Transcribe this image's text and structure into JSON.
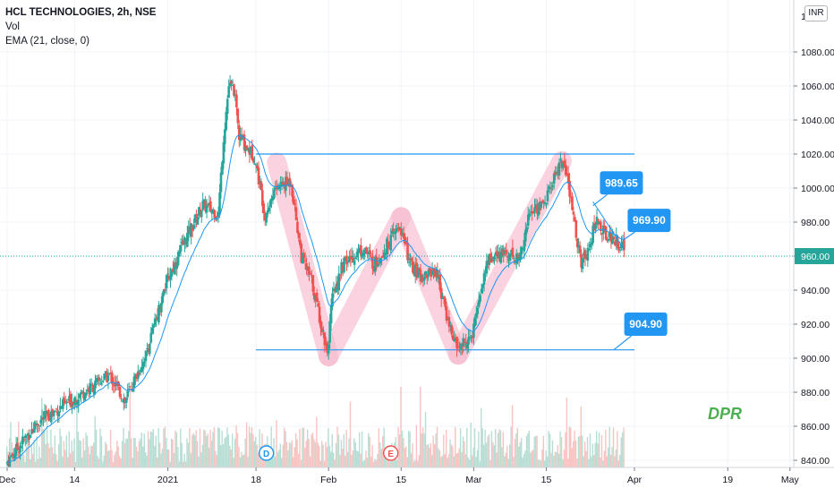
{
  "header": {
    "symbol_title": "HCL TECHNOLOGIES, 2h, NSE",
    "indicator_vol": "Vol",
    "indicator_ema": "EMA (21, close, 0)",
    "currency": "INR"
  },
  "watermark": "DPR",
  "price_axis": {
    "labels": [
      "1080.00",
      "1060.00",
      "1040.00",
      "1020.00",
      "1000.00",
      "980.00",
      "960.00",
      "940.00",
      "920.00",
      "900.00",
      "880.00",
      "860.00",
      "840.00"
    ],
    "top_label": "1",
    "last_price_label": "960.00"
  },
  "time_axis": {
    "labels": [
      "Dec",
      "14",
      "2021",
      "18",
      "Feb",
      "15",
      "Mar",
      "15",
      "Apr",
      "19",
      "May"
    ]
  },
  "callouts": [
    {
      "name": "callout-989-65",
      "text": "989.65"
    },
    {
      "name": "callout-969-90",
      "text": "969.90"
    },
    {
      "name": "callout-904-90",
      "text": "904.90"
    }
  ],
  "event_markers": [
    {
      "name": "dividend-marker",
      "text": "D"
    },
    {
      "name": "earnings-marker",
      "text": "E"
    }
  ],
  "colors": {
    "up": "#26a69a",
    "down": "#ef5350",
    "ema": "#2196f3",
    "level_line": "#2196f3",
    "pattern_fill": "#f8bbd0",
    "watermark": "#4caf50",
    "callout_bg": "#2196f3"
  },
  "chart_data": {
    "type": "candlestick",
    "symbol": "HCL TECHNOLOGIES",
    "interval": "2h",
    "exchange": "NSE",
    "indicators": [
      "Vol",
      "EMA (21, close, 0)"
    ],
    "ylim": [
      836,
      1100
    ],
    "grid": true,
    "last_price": 960.0,
    "horizontal_levels": [
      1020,
      904.9
    ],
    "annotations": [
      "989.65",
      "969.90",
      "904.90",
      "DPR"
    ],
    "anchors": [
      {
        "date": "Dec 1",
        "price": 838
      },
      {
        "date": "Dec 7",
        "price": 862
      },
      {
        "date": "Dec 14",
        "price": 876
      },
      {
        "date": "Dec 21",
        "price": 890
      },
      {
        "date": "Dec 24",
        "price": 875
      },
      {
        "date": "Dec 28",
        "price": 902
      },
      {
        "date": "Jan 1",
        "price": 945
      },
      {
        "date": "Jan 5",
        "price": 972
      },
      {
        "date": "Jan 8",
        "price": 990
      },
      {
        "date": "Jan 11",
        "price": 985
      },
      {
        "date": "Jan 12",
        "price": 1030
      },
      {
        "date": "Jan 13",
        "price": 1060
      },
      {
        "date": "Jan 14",
        "price": 1058
      },
      {
        "date": "Jan 15",
        "price": 1030
      },
      {
        "date": "Jan 18",
        "price": 1018
      },
      {
        "date": "Jan 20",
        "price": 985
      },
      {
        "date": "Jan 22",
        "price": 1000
      },
      {
        "date": "Jan 25",
        "price": 1004
      },
      {
        "date": "Jan 27",
        "price": 960
      },
      {
        "date": "Jan 29",
        "price": 945
      },
      {
        "date": "Feb 1",
        "price": 904
      },
      {
        "date": "Feb 2",
        "price": 935
      },
      {
        "date": "Feb 4",
        "price": 955
      },
      {
        "date": "Feb 8",
        "price": 965
      },
      {
        "date": "Feb 10",
        "price": 955
      },
      {
        "date": "Feb 12",
        "price": 964
      },
      {
        "date": "Feb 15",
        "price": 978
      },
      {
        "date": "Feb 17",
        "price": 955
      },
      {
        "date": "Feb 19",
        "price": 948
      },
      {
        "date": "Feb 22",
        "price": 952
      },
      {
        "date": "Feb 24",
        "price": 925
      },
      {
        "date": "Feb 26",
        "price": 906
      },
      {
        "date": "Mar 1",
        "price": 912
      },
      {
        "date": "Mar 2",
        "price": 932
      },
      {
        "date": "Mar 4",
        "price": 958
      },
      {
        "date": "Mar 8",
        "price": 962
      },
      {
        "date": "Mar 10",
        "price": 958
      },
      {
        "date": "Mar 12",
        "price": 985
      },
      {
        "date": "Mar 15",
        "price": 992
      },
      {
        "date": "Mar 18",
        "price": 1016
      },
      {
        "date": "Mar 19",
        "price": 1010
      },
      {
        "date": "Mar 22",
        "price": 955
      },
      {
        "date": "Mar 23",
        "price": 962
      },
      {
        "date": "Mar 25",
        "price": 982
      },
      {
        "date": "Mar 26",
        "price": 975
      },
      {
        "date": "Mar 30",
        "price": 966
      }
    ]
  }
}
